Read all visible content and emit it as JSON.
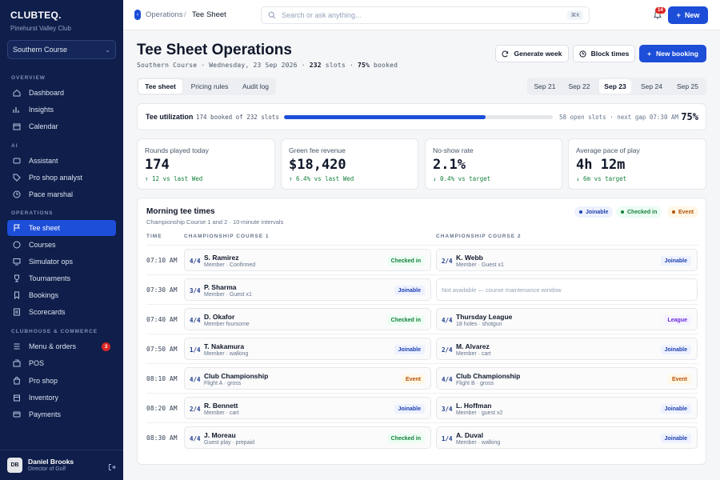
{
  "sidebar": {
    "brand": "CLUBTEQ.",
    "club": "Pinehurst Valley Club",
    "course_selector": "Southern Course",
    "sections": {
      "overview": "OVERVIEW",
      "ai": "AI",
      "operations": "OPERATIONS",
      "clubhouse": "CLUBHOUSE & COMMERCE"
    },
    "items": [
      {
        "label": "Dashboard",
        "icon": "home-icon"
      },
      {
        "label": "Insights",
        "icon": "chart-icon"
      },
      {
        "label": "Calendar",
        "icon": "calendar-icon"
      },
      {
        "label": "Assistant",
        "icon": "sparkle-icon"
      },
      {
        "label": "Pro shop analyst",
        "icon": "tag-icon"
      },
      {
        "label": "Pace marshal",
        "icon": "clock-icon"
      },
      {
        "label": "Tee sheet",
        "icon": "flag-icon"
      },
      {
        "label": "Courses",
        "icon": "map-icon"
      },
      {
        "label": "Simulator ops",
        "icon": "monitor-icon"
      },
      {
        "label": "Tournaments",
        "icon": "trophy-icon"
      },
      {
        "label": "Bookings",
        "icon": "bookmark-icon"
      },
      {
        "label": "Scorecards",
        "icon": "scorecard-icon"
      },
      {
        "label": "Menu & orders",
        "icon": "menu-icon",
        "badge": "3"
      },
      {
        "label": "POS",
        "icon": "register-icon"
      },
      {
        "label": "Pro shop",
        "icon": "bag-icon"
      },
      {
        "label": "Inventory",
        "icon": "box-icon"
      },
      {
        "label": "Payments",
        "icon": "card-icon"
      }
    ],
    "user": {
      "initials": "DB",
      "name": "Daniel Brooks",
      "role": "Director of Golf"
    }
  },
  "topbar": {
    "crumb_parent": "Operations",
    "crumb_sep": "/",
    "crumb_current": "Tee Sheet",
    "search_placeholder": "Search or ask anything...",
    "shortcut": "⌘K",
    "notification_count": "14",
    "new_label": "New"
  },
  "header": {
    "title": "Tee Sheet Operations",
    "subtitle_prefix": "Southern Course · Wednesday, 23 Sep 2026 · ",
    "slots": "232",
    "slots_suffix": " slots · ",
    "booked_pct": "75%",
    "booked_suffix": " booked",
    "buttons": {
      "generate": "Generate week",
      "block": "Block times",
      "new_booking": "New booking"
    }
  },
  "tabs": [
    "Tee sheet",
    "Pricing rules",
    "Audit log"
  ],
  "dates": [
    "Sep 21",
    "Sep 22",
    "Sep 23",
    "Sep 24",
    "Sep 25"
  ],
  "utilization": {
    "label": "Tee utilization",
    "meta": "174 booked of 232 slots",
    "fraction": 0.75,
    "right": "58 open slots · next gap 07:30 AM",
    "pct": "75%"
  },
  "kpis": [
    {
      "label": "Rounds played today",
      "value": "174",
      "delta": "↑ 12 vs last Wed"
    },
    {
      "label": "Green fee revenue",
      "value": "$18,420",
      "delta": "↑ 6.4% vs last Wed"
    },
    {
      "label": "No-show rate",
      "value": "2.1%",
      "delta": "↓ 0.4% vs target"
    },
    {
      "label": "Average pace of play",
      "value": "4h 12m",
      "delta": "↓ 6m vs target"
    }
  ],
  "tee_times": {
    "title": "Morning tee times",
    "subtitle": "Championship Course 1 and 2 · 10-minute intervals",
    "legend": {
      "joinable": "Joinable",
      "checked": "Checked in",
      "event": "Event"
    },
    "columns": {
      "time": "TIME",
      "course1": "CHAMPIONSHIP COURSE 1",
      "course2": "CHAMPIONSHIP COURSE 2"
    },
    "rows": [
      {
        "time": "07:10 AM",
        "c1": {
          "count": "4/4",
          "name": "S. Ramirez",
          "detail": "Member · Confirmed",
          "status": "Checked in"
        },
        "c2": {
          "count": "2/4",
          "name": "K. Webb",
          "detail": "Member · Guest x1",
          "status": "Joinable"
        }
      },
      {
        "time": "07:30 AM",
        "c1": {
          "count": "3/4",
          "name": "P. Sharma",
          "detail": "Member · Guest x1",
          "status": "Joinable"
        },
        "c2": {
          "unavailable": "Not available — course maintenance window"
        }
      },
      {
        "time": "07:40 AM",
        "c1": {
          "count": "4/4",
          "name": "D. Okafor",
          "detail": "Member foursome",
          "status": "Checked in"
        },
        "c2": {
          "count": "4/4",
          "name": "Thursday League",
          "detail": "18 holes · shotgun",
          "status": "League"
        }
      },
      {
        "time": "07:50 AM",
        "c1": {
          "count": "1/4",
          "name": "T. Nakamura",
          "detail": "Member · walking",
          "status": "Joinable"
        },
        "c2": {
          "count": "2/4",
          "name": "M. Alvarez",
          "detail": "Member · cart",
          "status": "Joinable"
        }
      },
      {
        "time": "08:10 AM",
        "c1": {
          "count": "4/4",
          "name": "Club Championship",
          "detail": "Flight A · gross",
          "status": "Event"
        },
        "c2": {
          "count": "4/4",
          "name": "Club Championship",
          "detail": "Flight B · gross",
          "status": "Event"
        }
      },
      {
        "time": "08:20 AM",
        "c1": {
          "count": "2/4",
          "name": "R. Bennett",
          "detail": "Member · cart",
          "status": "Joinable"
        },
        "c2": {
          "count": "3/4",
          "name": "L. Hoffman",
          "detail": "Member · guest x2",
          "status": "Joinable"
        }
      },
      {
        "time": "08:30 AM",
        "c1": {
          "count": "4/4",
          "name": "J. Moreau",
          "detail": "Guest play · prepaid",
          "status": "Checked in"
        },
        "c2": {
          "count": "1/4",
          "name": "A. Duval",
          "detail": "Member · walking",
          "status": "Joinable"
        }
      }
    ]
  },
  "colors": {
    "accent": "#1d4ed8",
    "sidebar_bg": "#0f1e4a",
    "joinable": "#1e40af",
    "checked": "#15803d",
    "event": "#b45309",
    "league": "#6d28d9"
  }
}
